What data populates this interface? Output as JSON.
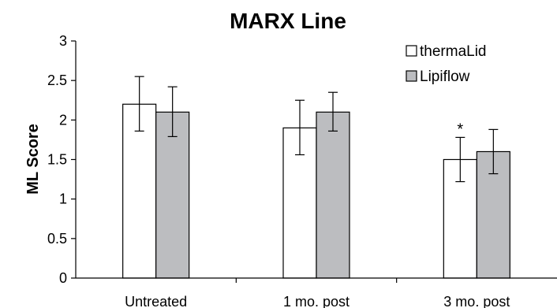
{
  "chart_data": {
    "type": "bar",
    "title": "MARX Line",
    "xlabel": "",
    "ylabel": "ML Score",
    "ylim": [
      0,
      3
    ],
    "yticks": [
      {
        "value": 0,
        "label": "0"
      },
      {
        "value": 0.5,
        "label": "0.5"
      },
      {
        "value": 1,
        "label": "1"
      },
      {
        "value": 1.5,
        "label": "1.5"
      },
      {
        "value": 2,
        "label": "2"
      },
      {
        "value": 2.5,
        "label": "2.5"
      },
      {
        "value": 3,
        "label": "3"
      }
    ],
    "categories": [
      "Untreated",
      "1 mo. post",
      "3 mo. post"
    ],
    "series": [
      {
        "name": "thermaLid",
        "color": "#ffffff",
        "values": [
          2.2,
          1.9,
          1.5
        ],
        "error_low": [
          1.86,
          1.56,
          1.22
        ],
        "error_high": [
          2.55,
          2.25,
          1.78
        ]
      },
      {
        "name": "Lipiflow",
        "color": "#bcbdc0",
        "values": [
          2.1,
          2.1,
          1.6
        ],
        "error_low": [
          1.79,
          1.86,
          1.32
        ],
        "error_high": [
          2.42,
          2.35,
          1.88
        ]
      }
    ],
    "grid": false,
    "legend_position": "top-right",
    "annotations": [
      {
        "text": "*",
        "category": "3 mo. post",
        "series": "thermaLid"
      }
    ]
  }
}
